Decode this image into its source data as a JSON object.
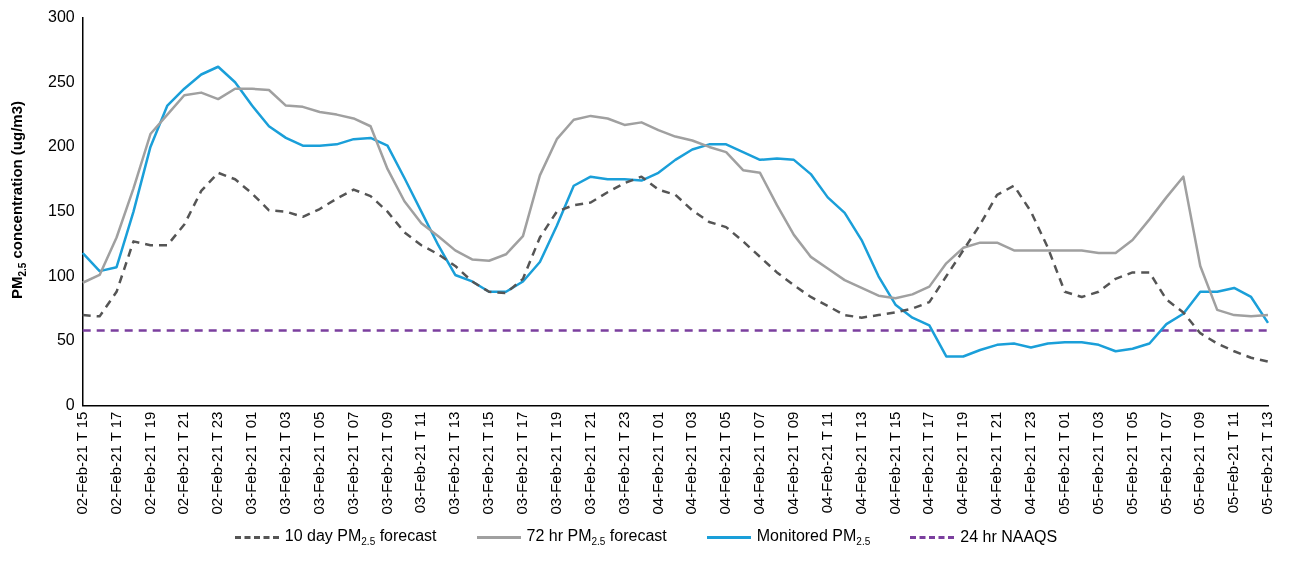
{
  "chart_data": {
    "type": "line",
    "ylabel": "PM$_{2.5}$ concentration (ug/m3)",
    "categories": [
      "02-Feb-21 T 15",
      null,
      "02-Feb-21 T 17",
      null,
      "02-Feb-21 T 19",
      null,
      "02-Feb-21 T 21",
      null,
      "02-Feb-21 T 23",
      null,
      "03-Feb-21 T 01",
      null,
      "03-Feb-21 T 03",
      null,
      "03-Feb-21 T 05",
      null,
      "03-Feb-21 T 07",
      null,
      "03-Feb-21 T 09",
      null,
      "03-Feb-21 T 11",
      null,
      "03-Feb-21 T 13",
      null,
      "03-Feb-21 T 15",
      null,
      "03-Feb-21 T 17",
      null,
      "03-Feb-21 T 19",
      null,
      "03-Feb-21 T 21",
      null,
      "03-Feb-21 T 23",
      null,
      "04-Feb-21 T 01",
      null,
      "04-Feb-21 T 03",
      null,
      "04-Feb-21 T 05",
      null,
      "04-Feb-21 T 07",
      null,
      "04-Feb-21 T 09",
      null,
      "04-Feb-21 T 11",
      null,
      "04-Feb-21 T 13",
      null,
      "04-Feb-21 T 15",
      null,
      "04-Feb-21 T 17",
      null,
      "04-Feb-21 T 19",
      null,
      "04-Feb-21 T 21",
      null,
      "04-Feb-21 T 23",
      null,
      "05-Feb-21 T 01",
      null,
      "05-Feb-21 T 03",
      null,
      "05-Feb-21 T 05",
      null,
      "05-Feb-21 T 07",
      null,
      "05-Feb-21 T 09",
      null,
      "05-Feb-21 T 11",
      null,
      "05-Feb-21 T 13"
    ],
    "series": [
      {
        "name": "10 day PM$_{2.5}$ forecast",
        "color": "#555555",
        "line_style": "dashed",
        "values": [
          70,
          69,
          88,
          127,
          124,
          124,
          140,
          166,
          180,
          175,
          164,
          151,
          150,
          146,
          152,
          160,
          167,
          162,
          150,
          134,
          124,
          117,
          108,
          96,
          88,
          87,
          98,
          130,
          150,
          155,
          157,
          165,
          172,
          177,
          167,
          163,
          151,
          142,
          138,
          127,
          115,
          103,
          93,
          84,
          77,
          70,
          68,
          70,
          72,
          75,
          80,
          100,
          120,
          140,
          163,
          170,
          150,
          122,
          88,
          84,
          88,
          98,
          103,
          103,
          82,
          72,
          56,
          48,
          42,
          37,
          34
        ]
      },
      {
        "name": "72 hr PM$_{2.5}$ forecast",
        "color": "#a0a0a0",
        "line_style": "solid",
        "values": [
          95,
          101,
          130,
          168,
          210,
          225,
          240,
          242,
          237,
          245,
          245,
          244,
          232,
          231,
          227,
          225,
          222,
          216,
          183,
          158,
          141,
          131,
          120,
          113,
          112,
          117,
          131,
          178,
          206,
          221,
          224,
          222,
          217,
          219,
          213,
          208,
          205,
          200,
          196,
          182,
          180,
          155,
          132,
          115,
          106,
          97,
          91,
          85,
          83,
          86,
          92,
          110,
          122,
          126,
          126,
          120,
          120,
          120,
          120,
          120,
          118,
          118,
          128,
          144,
          161,
          177,
          108,
          74,
          70,
          69,
          70
        ]
      },
      {
        "name": "Monitored PM$_{2.5}$",
        "color": "#1a9fd9",
        "line_style": "solid",
        "values": [
          118,
          104,
          107,
          150,
          200,
          232,
          245,
          256,
          262,
          250,
          232,
          216,
          207,
          201,
          201,
          202,
          206,
          207,
          201,
          176,
          150,
          124,
          101,
          96,
          88,
          88,
          96,
          111,
          139,
          170,
          177,
          175,
          175,
          174,
          180,
          190,
          198,
          202,
          202,
          196,
          190,
          191,
          190,
          179,
          161,
          149,
          128,
          100,
          78,
          68,
          62,
          38,
          38,
          43,
          47,
          48,
          45,
          48,
          49,
          49,
          47,
          42,
          44,
          48,
          63,
          71,
          88,
          88,
          91,
          84,
          64
        ]
      },
      {
        "name": "24 hr NAAQS",
        "color": "#7b3f9e",
        "line_style": "dashed",
        "values": [
          58,
          58,
          58,
          58,
          58,
          58,
          58,
          58,
          58,
          58,
          58,
          58,
          58,
          58,
          58,
          58,
          58,
          58,
          58,
          58,
          58,
          58,
          58,
          58,
          58,
          58,
          58,
          58,
          58,
          58,
          58,
          58,
          58,
          58,
          58,
          58,
          58,
          58,
          58,
          58,
          58,
          58,
          58,
          58,
          58,
          58,
          58,
          58,
          58,
          58,
          58,
          58,
          58,
          58,
          58,
          58,
          58,
          58,
          58,
          58,
          58,
          58,
          58,
          58,
          58,
          58,
          58,
          58,
          58,
          58,
          58
        ]
      }
    ],
    "ylim": [
      0,
      300
    ],
    "yticks": [
      0,
      50,
      100,
      150,
      200,
      250,
      300
    ],
    "grid": false,
    "legend": "bottom",
    "marker": "none"
  }
}
